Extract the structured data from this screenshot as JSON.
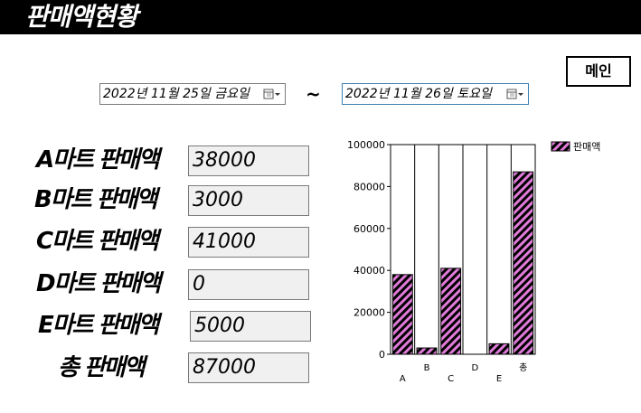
{
  "title": "판매액현황",
  "main_button_label": "메인",
  "date_from": "2022년 11월 25일 금요일",
  "date_to": "2022년 11월 26일 토요일",
  "range_separator": "~",
  "stats": [
    {
      "label": "A마트 판매액",
      "value": "38000"
    },
    {
      "label": "B마트 판매액",
      "value": "3000"
    },
    {
      "label": "C마트 판매액",
      "value": "41000"
    },
    {
      "label": "D마트 판매액",
      "value": "0"
    },
    {
      "label": "E마트 판매액",
      "value": "5000"
    },
    {
      "label": "총 판매액",
      "value": "87000"
    }
  ],
  "colors": {
    "bar_fill": "#e07ad8",
    "bar_hatch": "#000000",
    "title_bg": "#000000"
  },
  "chart_data": {
    "type": "bar",
    "categories": [
      "A",
      "B",
      "C",
      "D",
      "E",
      "총"
    ],
    "series": [
      {
        "name": "판매액",
        "values": [
          38000,
          3000,
          41000,
          0,
          5000,
          87000
        ]
      }
    ],
    "yticks": [
      "0",
      "20000",
      "40000",
      "60000",
      "80000",
      "100000"
    ],
    "ylim": [
      0,
      100000
    ],
    "grid": "vertical",
    "legend": "top-right"
  }
}
